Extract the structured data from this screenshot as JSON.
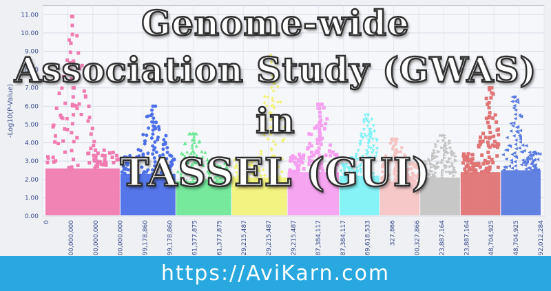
{
  "overlay": {
    "title_line1": "Genome-wide",
    "title_line2": "Association Study (GWAS)",
    "title_line3": "in",
    "title_line4": "TASSEL (GUI)"
  },
  "footer": {
    "url": "https://AviKarn.com"
  },
  "chart_data": {
    "type": "scatter",
    "ylabel": "-Log10(P-Value)",
    "ylim": [
      0,
      11.5
    ],
    "yticks": [
      "0.00",
      "1.00",
      "2.00",
      "3.00",
      "4.00",
      "5.00",
      "6.00",
      "7.00",
      "8.00",
      "9.00",
      "10.00",
      "11.00"
    ],
    "xtick_labels": [
      "0",
      "100,000,000",
      "200,000,000",
      "300,000,000",
      "99,178,860",
      "199,178,860",
      "61,377,875",
      "161,377,875",
      "29,215,487",
      "129,215,487",
      "229,215,487",
      "87,384,117",
      "187,384,117",
      "69,618,533",
      "327,866",
      "100,327,866",
      "23,887,164",
      "123,887,164",
      "48,704,925",
      "148,704,925",
      "92,012,284"
    ],
    "grid": true,
    "series": [
      {
        "color": "#f07bb0",
        "shape": "square",
        "peak": 10.9,
        "base": 2.6
      },
      {
        "color": "#4c6fe8",
        "shape": "circle",
        "peak": 6.0,
        "base": 2.3
      },
      {
        "color": "#6fe897",
        "shape": "triangle",
        "peak": 4.5,
        "base": 1.9
      },
      {
        "color": "#f2f27a",
        "shape": "diamond",
        "peak": 8.8,
        "base": 2.1
      },
      {
        "color": "#f5a0f0",
        "shape": "square",
        "peak": 6.1,
        "base": 2.4
      },
      {
        "color": "#7ff2f7",
        "shape": "triangle-down",
        "peak": 5.5,
        "base": 2.2
      },
      {
        "color": "#f5c5c5",
        "shape": "circle",
        "peak": 4.2,
        "base": 1.9
      },
      {
        "color": "#c4c4c4",
        "shape": "triangle-right",
        "peak": 4.4,
        "base": 2.1
      },
      {
        "color": "#e07474",
        "shape": "square",
        "peak": 7.0,
        "base": 2.4
      },
      {
        "color": "#5a7be0",
        "shape": "triangle-left",
        "peak": 6.5,
        "base": 2.5
      }
    ]
  }
}
